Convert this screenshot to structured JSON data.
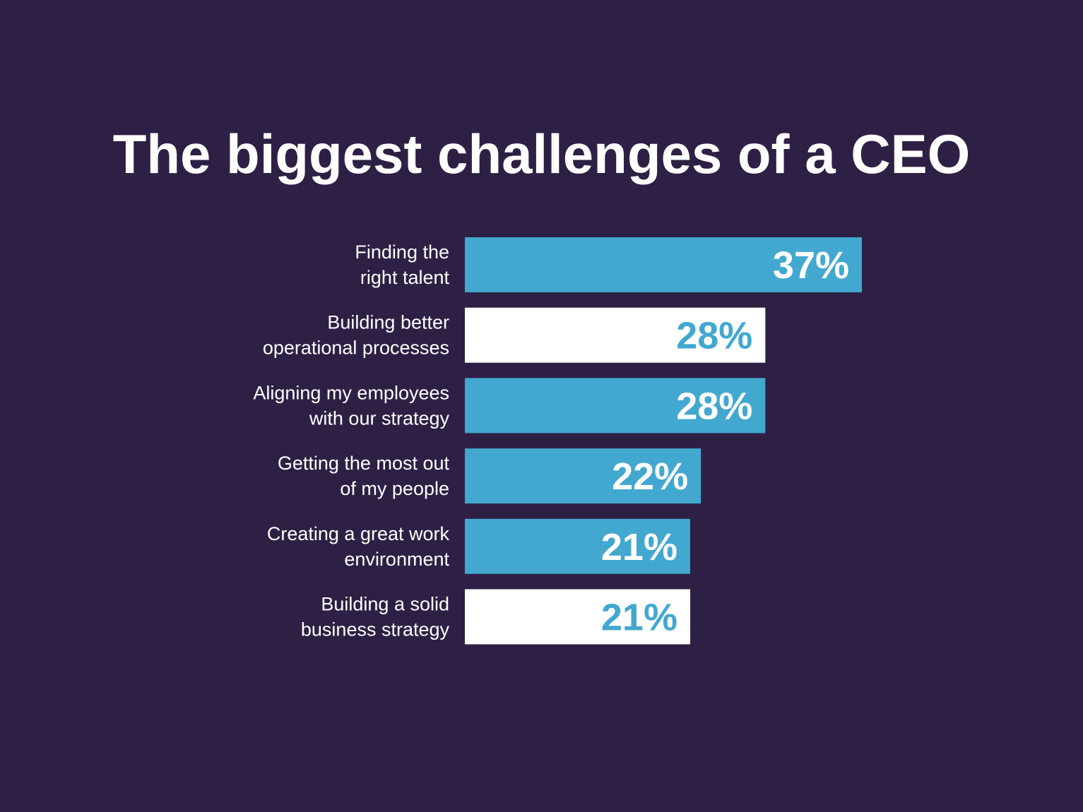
{
  "chart_data": {
    "type": "bar",
    "orientation": "horizontal",
    "title": "The biggest challenges of a CEO",
    "categories": [
      [
        "Finding the",
        "right talent"
      ],
      [
        "Building better",
        "operational processes"
      ],
      [
        "Aligning my employees",
        "with our strategy"
      ],
      [
        "Getting the most out",
        "of my people"
      ],
      [
        "Creating a great work",
        "environment"
      ],
      [
        "Building a solid",
        "business strategy"
      ]
    ],
    "values": [
      37,
      28,
      28,
      22,
      21,
      21
    ],
    "value_labels": [
      "37%",
      "28%",
      "28%",
      "22%",
      "21%",
      "21%"
    ],
    "bar_styles": [
      "blue",
      "white",
      "blue",
      "blue",
      "blue",
      "white"
    ],
    "grid": false,
    "legend": "none"
  },
  "colors": {
    "background": "#2e2044",
    "accent": "#42a8d0",
    "white": "#ffffff"
  }
}
